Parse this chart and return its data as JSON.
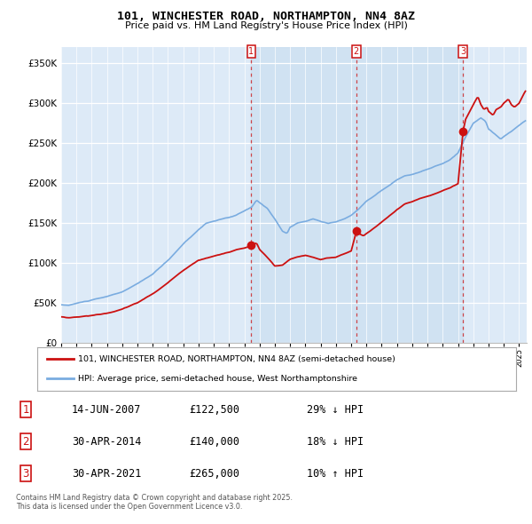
{
  "title_line1": "101, WINCHESTER ROAD, NORTHAMPTON, NN4 8AZ",
  "title_line2": "Price paid vs. HM Land Registry's House Price Index (HPI)",
  "hpi_color": "#7aace0",
  "price_color": "#cc1111",
  "background_chart": "#ddeaf7",
  "background_fig": "#ffffff",
  "shade_color": "#c8ddf0",
  "ylim": [
    0,
    370000
  ],
  "yticks": [
    0,
    50000,
    100000,
    150000,
    200000,
    250000,
    300000,
    350000
  ],
  "transaction_dates_num": [
    2007.46,
    2014.33,
    2021.33
  ],
  "transaction_prices": [
    122500,
    140000,
    265000
  ],
  "transaction_labels": [
    "1",
    "2",
    "3"
  ],
  "legend_line1": "101, WINCHESTER ROAD, NORTHAMPTON, NN4 8AZ (semi-detached house)",
  "legend_line2": "HPI: Average price, semi-detached house, West Northamptonshire",
  "table_rows": [
    [
      "1",
      "14-JUN-2007",
      "£122,500",
      "29% ↓ HPI"
    ],
    [
      "2",
      "30-APR-2014",
      "£140,000",
      "18% ↓ HPI"
    ],
    [
      "3",
      "30-APR-2021",
      "£265,000",
      "10% ↑ HPI"
    ]
  ],
  "footer": "Contains HM Land Registry data © Crown copyright and database right 2025.\nThis data is licensed under the Open Government Licence v3.0."
}
